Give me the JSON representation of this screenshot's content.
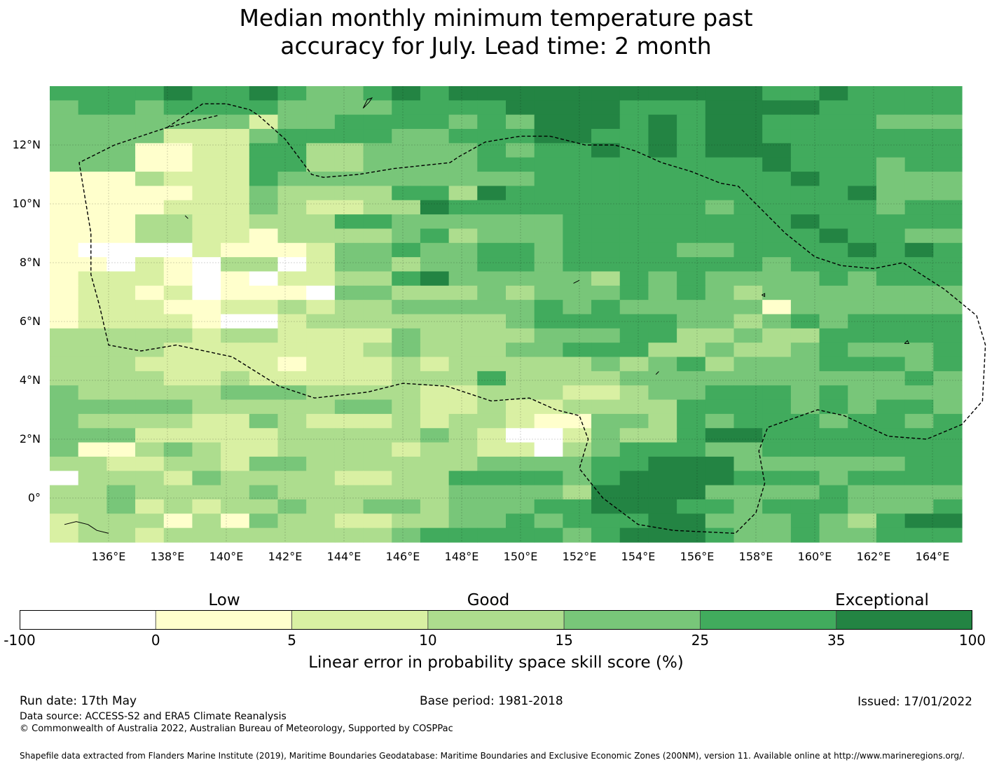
{
  "title": {
    "line1": "Median monthly minimum temperature past",
    "line2": "accuracy for July. Lead time: 2 month"
  },
  "map": {
    "lat_ticks": [
      "12°N",
      "10°N",
      "8°N",
      "6°N",
      "4°N",
      "2°N",
      "0°"
    ],
    "lon_ticks": [
      "136°E",
      "138°E",
      "140°E",
      "142°E",
      "144°E",
      "146°E",
      "148°E",
      "150°E",
      "152°E",
      "154°E",
      "156°E",
      "158°E",
      "160°E",
      "162°E",
      "164°E"
    ],
    "extent": {
      "lon_min": 134.0,
      "lon_max": 165.0,
      "lat_min": -1.5,
      "lat_max": 14.0
    },
    "grid_step_deg": 0.8333,
    "colors": [
      "#ffffff",
      "#ffffcc",
      "#d9f0a3",
      "#addd8e",
      "#78c679",
      "#41ab5d",
      "#238443"
    ],
    "cells": [
      "55556556544565666666666665565555",
      "45545555444455556666555666655555",
      "44444442445555454666565665555444",
      "44442224555544555665565665555555",
      "44411225533444454556565666555555",
      "44411225533444455555555556555455",
      "11132225444444444555555555655444",
      "11111224333355365555555555556444",
      "11112224322336555555555455555455",
      "11133223335544444455555555655555",
      "11133221333345344455555555565544",
      "10000211124454455455554455556565",
      "11021033024434455455555554555555",
      "12221010223356444443545444454555",
      "12212011104433343444545434444444",
      "12221122323344444545444441444444",
      "12222100233333334555554434545555",
      "33333233222243333444553343355555",
      "33332222222343334455533433454445",
      "33322222122232333334345344455545",
      "33332232222233353333444444444454",
      "43333344433332233322344555454444",
      "44444333334432232233335555454554",
      "43333224322232332114435455545545",
      "44422222333334320024335665555555",
      "41134322333323322034555445555555",
      "33223324433333344445566644444455",
      "03332433332233555545666655545555",
      "33433334333333444436666444454444",
      "33423233433443444556665545554445",
      "23331314332233445455566444543566",
      "23323333333345555545666544544555"
    ],
    "eez": [
      [
        [
          139.7,
          13.0
        ],
        [
          138.0,
          12.6
        ],
        [
          136.2,
          12.0
        ],
        [
          135.0,
          11.4
        ],
        [
          135.2,
          10.2
        ],
        [
          135.4,
          9.0
        ],
        [
          135.4,
          7.6
        ],
        [
          135.7,
          6.5
        ],
        [
          136.0,
          5.2
        ],
        [
          137.1,
          5.0
        ],
        [
          138.3,
          5.2
        ],
        [
          140.2,
          4.8
        ],
        [
          141.8,
          3.8
        ],
        [
          143.0,
          3.4
        ],
        [
          144.8,
          3.6
        ],
        [
          146.0,
          3.9
        ],
        [
          147.5,
          3.8
        ],
        [
          149.0,
          3.3
        ],
        [
          150.3,
          3.4
        ],
        [
          151.2,
          3.0
        ],
        [
          152.0,
          2.8
        ],
        [
          152.3,
          2.0
        ],
        [
          152.0,
          1.0
        ],
        [
          152.8,
          0.0
        ],
        [
          154.0,
          -0.9
        ],
        [
          155.2,
          -1.1
        ],
        [
          157.3,
          -1.2
        ],
        [
          158.0,
          -0.5
        ],
        [
          158.3,
          0.5
        ],
        [
          158.1,
          1.6
        ],
        [
          158.4,
          2.4
        ],
        [
          160.1,
          3.0
        ],
        [
          161.0,
          2.8
        ],
        [
          162.5,
          2.1
        ],
        [
          163.8,
          2.0
        ],
        [
          165.0,
          2.5
        ],
        [
          165.7,
          3.3
        ],
        [
          165.8,
          5.2
        ],
        [
          165.5,
          6.2
        ],
        [
          164.4,
          7.1
        ],
        [
          163.0,
          8.0
        ],
        [
          162.0,
          7.8
        ],
        [
          160.9,
          7.9
        ],
        [
          160.0,
          8.2
        ],
        [
          159.0,
          9.0
        ],
        [
          158.0,
          10.0
        ],
        [
          157.4,
          10.6
        ],
        [
          156.8,
          10.7
        ],
        [
          155.8,
          11.1
        ],
        [
          154.8,
          11.4
        ],
        [
          153.9,
          11.8
        ],
        [
          153.2,
          12.0
        ],
        [
          152.2,
          12.0
        ],
        [
          151.0,
          12.3
        ],
        [
          150.0,
          12.3
        ],
        [
          148.8,
          12.1
        ],
        [
          147.9,
          11.6
        ],
        [
          147.6,
          11.4
        ],
        [
          145.7,
          11.2
        ],
        [
          144.5,
          11.0
        ],
        [
          143.3,
          10.9
        ],
        [
          142.9,
          11.0
        ],
        [
          142.0,
          12.2
        ],
        [
          141.1,
          13.0
        ],
        [
          140.8,
          13.2
        ],
        [
          140.0,
          13.4
        ],
        [
          139.2,
          13.4
        ],
        [
          138.0,
          12.6
        ]
      ]
    ],
    "coast": [
      [
        [
          144.65,
          13.25
        ],
        [
          144.85,
          13.45
        ],
        [
          144.95,
          13.6
        ],
        [
          144.8,
          13.55
        ],
        [
          144.65,
          13.25
        ]
      ],
      [
        [
          154.6,
          4.2
        ],
        [
          154.7,
          4.3
        ]
      ],
      [
        [
          163.05,
          5.25
        ],
        [
          163.15,
          5.35
        ],
        [
          163.2,
          5.25
        ],
        [
          163.05,
          5.25
        ]
      ],
      [
        [
          158.2,
          6.9
        ],
        [
          158.3,
          6.95
        ],
        [
          158.3,
          6.85
        ],
        [
          158.2,
          6.9
        ]
      ],
      [
        [
          151.8,
          7.3
        ],
        [
          152.0,
          7.4
        ]
      ],
      [
        [
          134.5,
          -0.9
        ],
        [
          134.9,
          -0.8
        ],
        [
          135.3,
          -0.9
        ],
        [
          135.6,
          -1.1
        ],
        [
          136.0,
          -1.2
        ]
      ],
      [
        [
          138.6,
          9.6
        ],
        [
          138.7,
          9.5
        ]
      ]
    ]
  },
  "colorbar": {
    "category_labels": {
      "low": "Low",
      "good": "Good",
      "exceptional": "Exceptional"
    },
    "ticks": [
      "-100",
      "0",
      "5",
      "10",
      "15",
      "25",
      "35",
      "100"
    ],
    "label": "Linear error in probability space skill score (%)"
  },
  "footer": {
    "run_date": "Run date: 17th May",
    "base_period": "Base period: 1981-2018",
    "issued": "Issued: 17/01/2022",
    "data_source": "Data source: ACCESS-S2 and ERA5 Climate Reanalysis",
    "copyright": "© Commonwealth of Australia 2022, Australian Bureau of Meteorology, Supported by COSPPac",
    "shapefile": "Shapefile data extracted from Flanders Marine Institute (2019), Maritime Boundaries Geodatabase: Maritime Boundaries and Exclusive Economic Zones (200NM), version 11. Available online at http://www.marineregions.org/."
  }
}
